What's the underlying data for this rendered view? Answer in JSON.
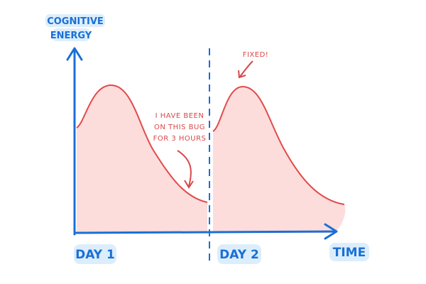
{
  "y_axis_label": [
    "COGNITIVE",
    "ENERGY"
  ],
  "x_axis_label": "TIME",
  "days": [
    "DAY 1",
    "DAY 2"
  ],
  "annotations": [
    {
      "lines": [
        "I HAVE BEEN",
        "ON THIS BUG",
        "FOR 3 HOURS"
      ]
    },
    {
      "lines": [
        "FIXED!"
      ]
    }
  ]
}
